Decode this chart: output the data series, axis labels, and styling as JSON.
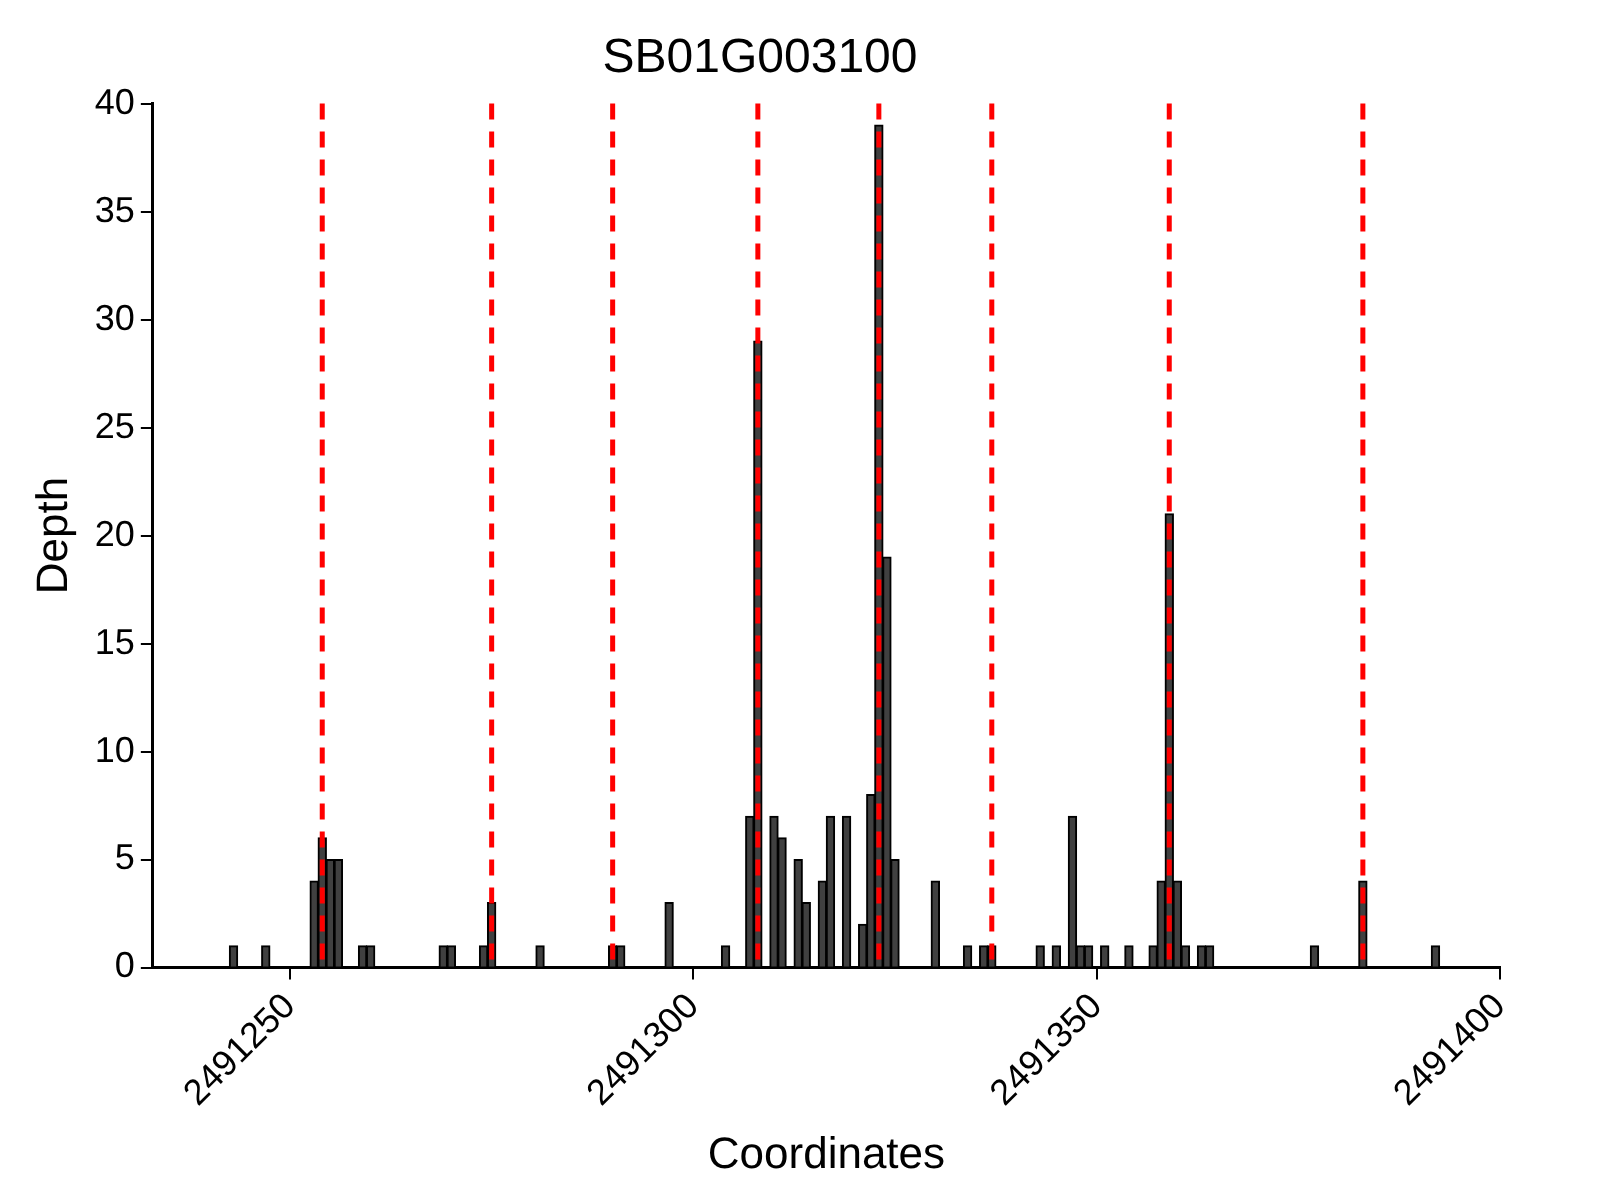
{
  "chart_data": {
    "type": "bar",
    "title": "SB01G003100",
    "xlabel": "Coordinates",
    "ylabel": "Depth",
    "x": [
      2491243,
      2491247,
      2491253,
      2491254,
      2491255,
      2491256,
      2491259,
      2491260,
      2491269,
      2491270,
      2491274,
      2491275,
      2491281,
      2491290,
      2491291,
      2491297,
      2491304,
      2491307,
      2491308,
      2491310,
      2491311,
      2491313,
      2491314,
      2491316,
      2491317,
      2491319,
      2491321,
      2491322,
      2491323,
      2491324,
      2491325,
      2491330,
      2491334,
      2491336,
      2491337,
      2491343,
      2491345,
      2491347,
      2491348,
      2491349,
      2491351,
      2491354,
      2491357,
      2491358,
      2491359,
      2491360,
      2491361,
      2491363,
      2491364,
      2491377,
      2491383,
      2491392
    ],
    "values": [
      1,
      1,
      4,
      6,
      5,
      5,
      1,
      1,
      1,
      1,
      1,
      3,
      1,
      1,
      1,
      3,
      1,
      7,
      29,
      7,
      6,
      5,
      3,
      4,
      7,
      7,
      2,
      8,
      39,
      19,
      5,
      4,
      1,
      1,
      1,
      1,
      1,
      7,
      1,
      1,
      1,
      1,
      1,
      4,
      21,
      4,
      1,
      1,
      1,
      1,
      4,
      1
    ],
    "color": "#404040",
    "xlim": [
      2491233,
      2491400
    ],
    "xticks": [
      2491250,
      2491300,
      2491350,
      2491400
    ],
    "ylim": [
      0,
      40
    ],
    "yticks": [
      0,
      5,
      10,
      15,
      20,
      25,
      30,
      35,
      40
    ],
    "ref_lines": [
      {
        "axis": "x",
        "value": 2491254,
        "color": "#ff0000",
        "line_style": "dashed"
      },
      {
        "axis": "x",
        "value": 2491275,
        "color": "#ff0000",
        "line_style": "dashed"
      },
      {
        "axis": "x",
        "value": 2491290,
        "color": "#ff0000",
        "line_style": "dashed"
      },
      {
        "axis": "x",
        "value": 2491308,
        "color": "#ff0000",
        "line_style": "dashed"
      },
      {
        "axis": "x",
        "value": 2491323,
        "color": "#ff0000",
        "line_style": "dashed"
      },
      {
        "axis": "x",
        "value": 2491337,
        "color": "#ff0000",
        "line_style": "dashed"
      },
      {
        "axis": "x",
        "value": 2491359,
        "color": "#ff0000",
        "line_style": "dashed"
      },
      {
        "axis": "x",
        "value": 2491383,
        "color": "#ff0000",
        "line_style": "dashed"
      }
    ],
    "grid": false,
    "legend": false
  }
}
